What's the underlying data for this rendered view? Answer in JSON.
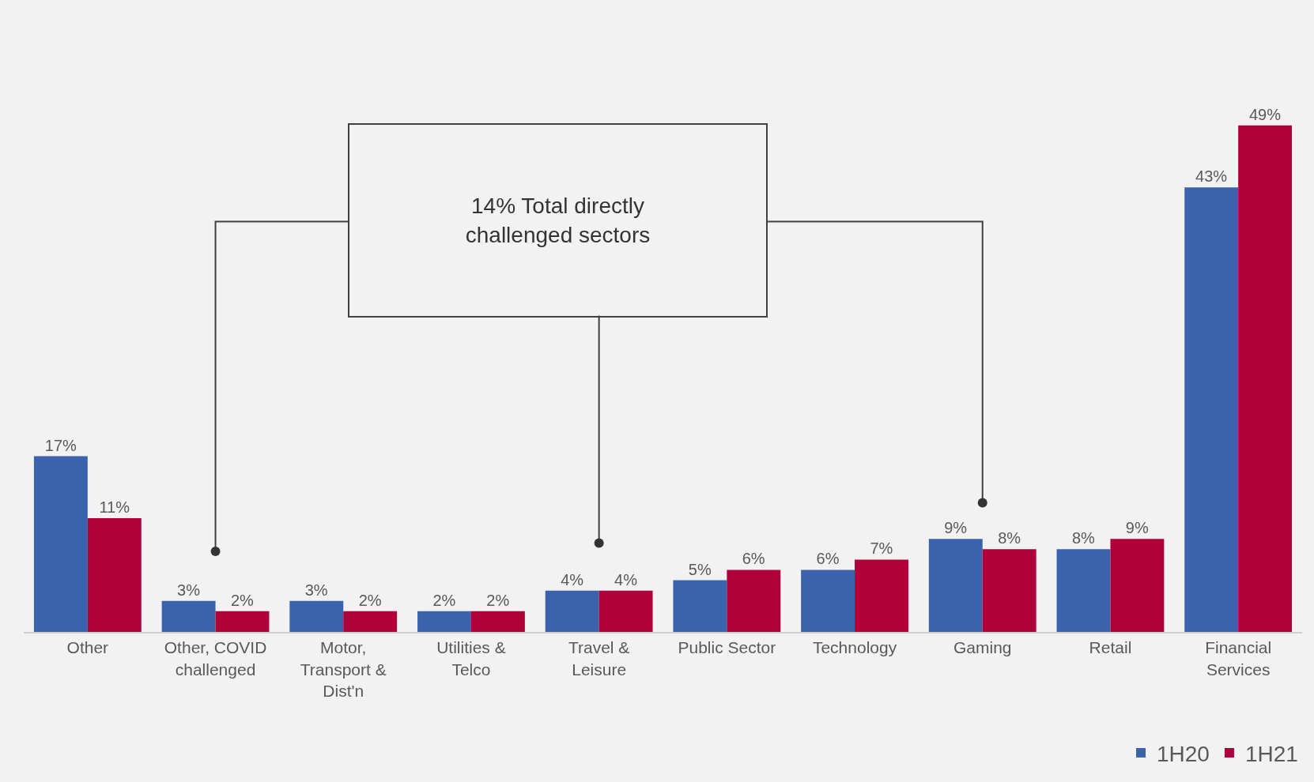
{
  "chart_data": {
    "type": "bar",
    "categories": [
      "Other",
      "Other, COVID challenged",
      "Motor, Transport & Dist'n",
      "Utilities & Telco",
      "Travel & Leisure",
      "Public Sector",
      "Technology",
      "Gaming",
      "Retail",
      "Financial Services"
    ],
    "series": [
      {
        "name": "1H20",
        "color": "#3a62ad",
        "values": [
          17,
          3,
          3,
          2,
          4,
          5,
          6,
          9,
          8,
          43
        ],
        "value_labels": [
          "17%",
          "3%",
          "3%",
          "2%",
          "4%",
          "5%",
          "6%",
          "9%",
          "8%",
          "43%"
        ]
      },
      {
        "name": "1H21",
        "color": "#b0003a",
        "values": [
          11,
          2,
          2,
          2,
          4,
          6,
          7,
          8,
          9,
          49
        ],
        "value_labels": [
          "11%",
          "2%",
          "2%",
          "2%",
          "4%",
          "6%",
          "7%",
          "8%",
          "9%",
          "49%"
        ]
      }
    ],
    "annotations": [
      "14% Total directly challenged sectors"
    ],
    "legend": "bottom right",
    "grid": false
  }
}
